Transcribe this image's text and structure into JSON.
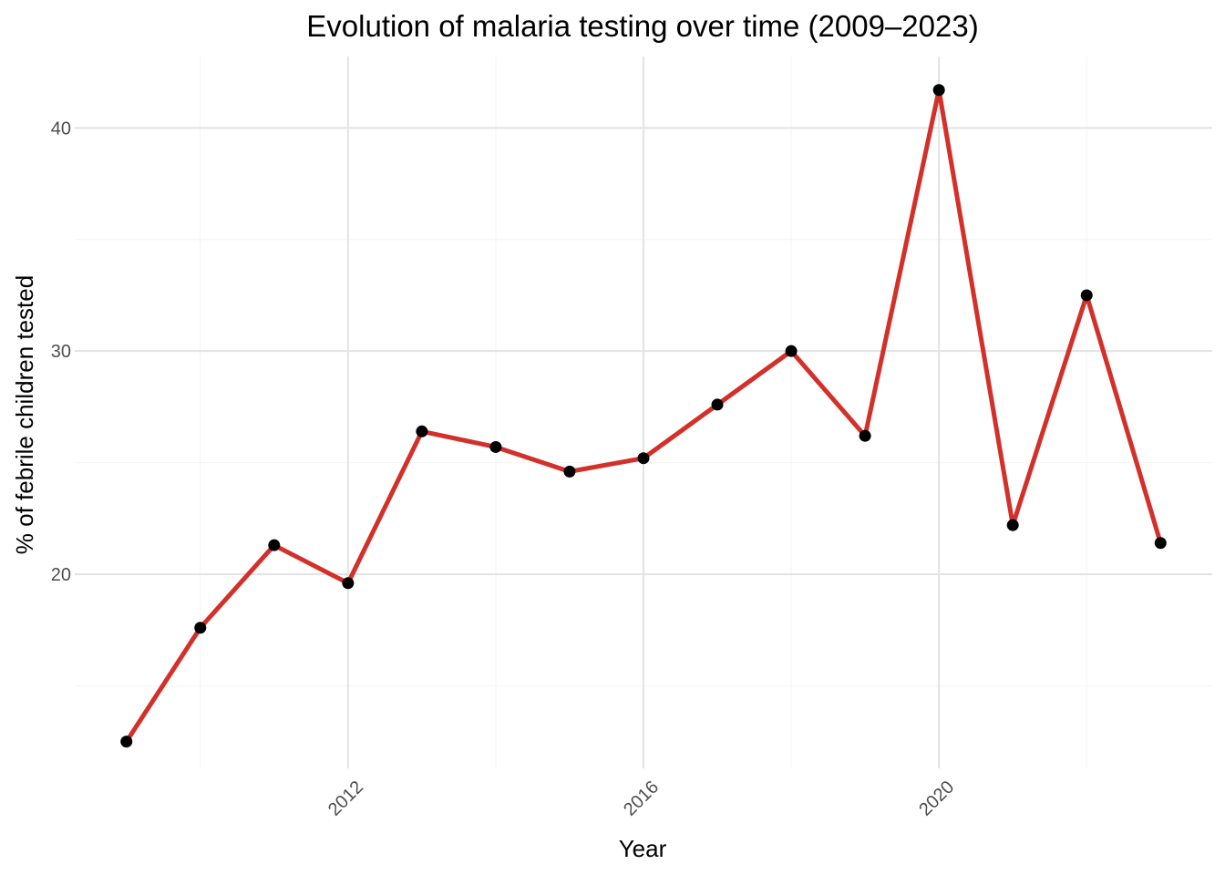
{
  "colors": {
    "background": "#ffffff",
    "line": "#d3302a",
    "point": "#000000",
    "grid_major": "#e3e3e3",
    "grid_minor": "#f4f4f4",
    "tick_text": "#4d4d4d"
  },
  "chart_data": {
    "type": "line",
    "title": "Evolution of malaria testing over time (2009–2023)",
    "xlabel": "Year",
    "ylabel": "% of febrile children tested",
    "x": [
      2009,
      2010,
      2011,
      2012,
      2013,
      2014,
      2015,
      2016,
      2017,
      2018,
      2019,
      2020,
      2021,
      2022,
      2023
    ],
    "series": [
      {
        "values": [
          12.5,
          17.6,
          21.3,
          19.6,
          26.4,
          25.7,
          24.6,
          25.2,
          27.6,
          30.0,
          26.2,
          41.7,
          22.2,
          32.5,
          21.4
        ]
      }
    ],
    "x_ticks": [
      2012,
      2016,
      2020
    ],
    "x_tick_labels": [
      "2012",
      "2016",
      "2020"
    ],
    "x_minor_ticks": [
      2010,
      2014,
      2018,
      2022
    ],
    "y_ticks": [
      20,
      30,
      40
    ],
    "y_tick_labels": [
      "20",
      "30",
      "40"
    ],
    "y_minor_ticks": [
      15,
      25,
      35
    ],
    "xlim": [
      2008.3,
      2023.7
    ],
    "ylim": [
      11.3,
      43.2
    ],
    "x_tick_label_rotation": -45,
    "grid": true,
    "legend": "none",
    "markers": true
  }
}
